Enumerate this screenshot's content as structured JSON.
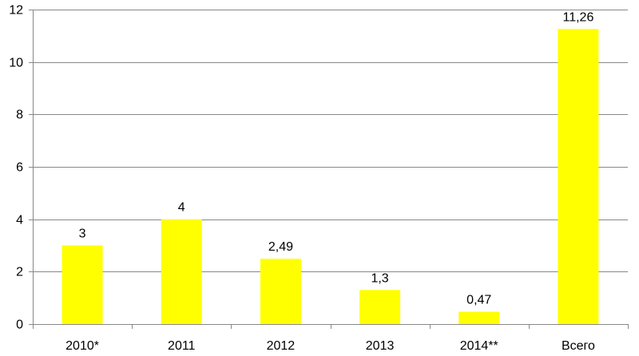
{
  "chart_data": {
    "type": "bar",
    "categories": [
      "2010*",
      "2011",
      "2012",
      "2013",
      "2014**",
      "Всего"
    ],
    "values": [
      3,
      4,
      2.49,
      1.3,
      0.47,
      11.26
    ],
    "data_labels": [
      "3",
      "4",
      "2,49",
      "1,3",
      "0,47",
      "11,26"
    ],
    "y_ticks": [
      0,
      2,
      4,
      6,
      8,
      10,
      12
    ],
    "y_tick_labels": [
      "0",
      "2",
      "4",
      "6",
      "8",
      "10",
      "12"
    ],
    "ylim": [
      0,
      12
    ],
    "grid": true,
    "legend": "none",
    "colors": {
      "bar": "#ffff00",
      "grid": "#888888",
      "axis": "#888888",
      "text": "#000000"
    }
  }
}
